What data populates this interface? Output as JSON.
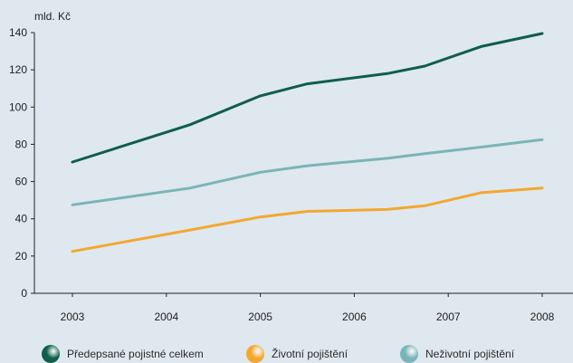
{
  "chart_data": {
    "type": "line",
    "y_unit": "mld. Kč",
    "x_ticks": [
      "2003",
      "2004",
      "2005",
      "2006",
      "2007",
      "2008"
    ],
    "y_ticks": [
      0,
      20,
      40,
      60,
      80,
      100,
      120,
      140
    ],
    "ylim": [
      0,
      140
    ],
    "xlim": [
      2003,
      2008
    ],
    "grid": false,
    "legend_position": "bottom",
    "series": [
      {
        "name": "Předepsané pojistné celkem",
        "color": "#0f5e4a",
        "x": [
          2003,
          2004.25,
          2005,
          2005.5,
          2006.35,
          2006.75,
          2007.35,
          2008
        ],
        "y": [
          70.5,
          90.5,
          106,
          112.5,
          118,
          122,
          132.5,
          139.5
        ]
      },
      {
        "name": "Životní pojištění",
        "color": "#f2a830",
        "x": [
          2003,
          2004.25,
          2005,
          2005.5,
          2006.35,
          2006.75,
          2007.35,
          2008
        ],
        "y": [
          22.5,
          34,
          41,
          44,
          45,
          47,
          54,
          56.5
        ]
      },
      {
        "name": "Neživotní pojištění",
        "color": "#79b5b8",
        "x": [
          2003,
          2004.25,
          2005,
          2005.5,
          2006.35,
          2006.75,
          2007.35,
          2008
        ],
        "y": [
          47.5,
          56.5,
          65,
          68.5,
          72.5,
          75,
          78.5,
          82.5
        ]
      }
    ]
  }
}
